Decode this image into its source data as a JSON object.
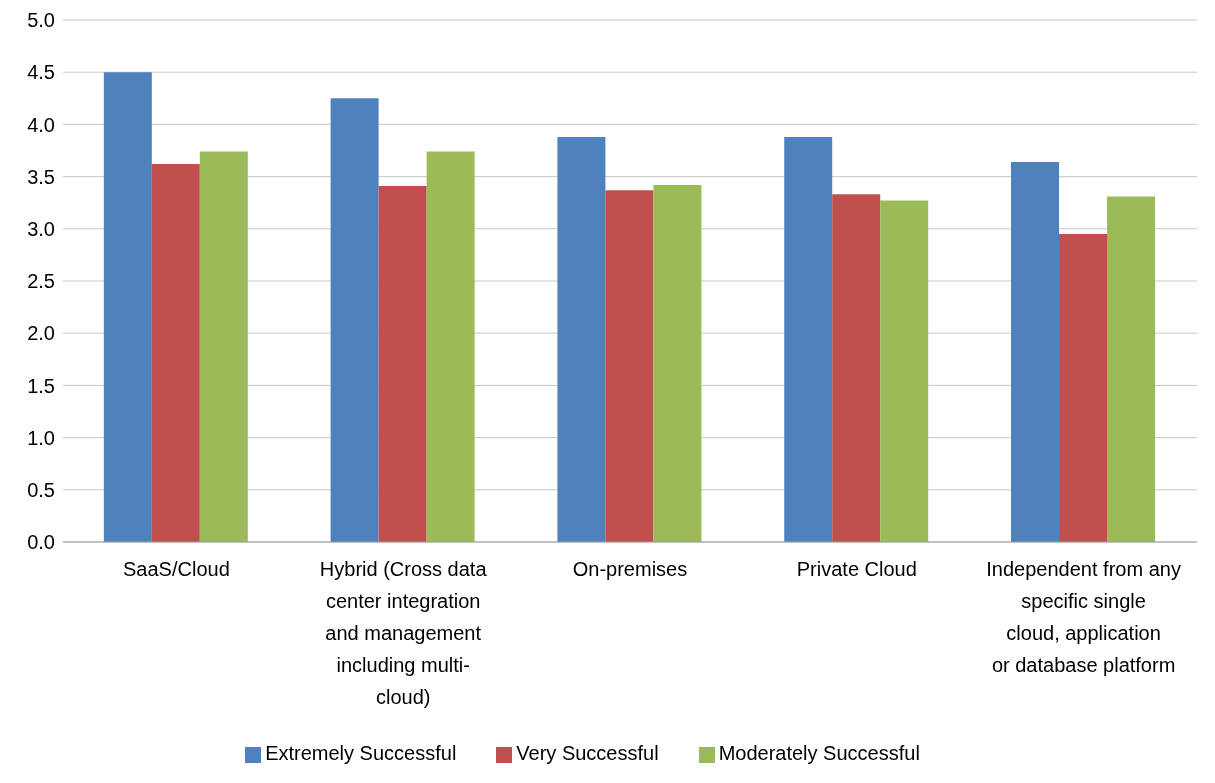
{
  "chart_data": {
    "type": "bar",
    "categories": [
      "SaaS/Cloud",
      "Hybrid (Cross data center integration and management including multi-cloud)",
      "On-premises",
      "Private Cloud",
      "Independent from any specific single cloud, application or database platform"
    ],
    "series": [
      {
        "name": "Extremely Successful",
        "color": "#4f81bd",
        "values": [
          4.5,
          4.25,
          3.88,
          3.88,
          3.64
        ]
      },
      {
        "name": "Very Successful",
        "color": "#c0504d",
        "values": [
          3.62,
          3.41,
          3.37,
          3.33,
          2.95
        ]
      },
      {
        "name": "Moderately Successful",
        "color": "#9bbb59",
        "values": [
          3.74,
          3.74,
          3.42,
          3.27,
          3.31
        ]
      }
    ],
    "ylim": [
      0,
      5
    ],
    "yticks": [
      {
        "value": 0,
        "label": "0.0"
      },
      0.5,
      {
        "value": 1,
        "label": "1.0"
      },
      1.5,
      {
        "value": 2,
        "label": "2.0"
      },
      2.5,
      {
        "value": 3,
        "label": "3.0"
      },
      3.5,
      {
        "value": 4,
        "label": "4.0"
      },
      4.5,
      {
        "value": 5,
        "label": "5.0"
      }
    ],
    "grid": "y",
    "legend": "bottom"
  }
}
